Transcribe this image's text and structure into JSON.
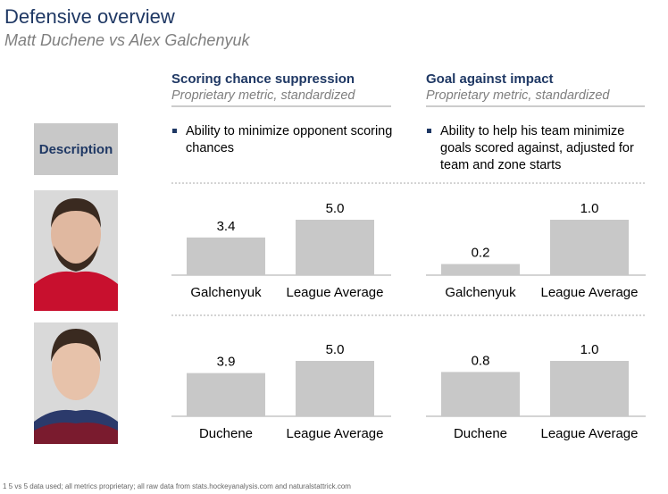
{
  "title": "Defensive overview",
  "subtitle": "Matt Duchene vs Alex Galchenyuk",
  "row_label": "Description",
  "columns": [
    {
      "title": "Scoring chance suppression",
      "subtitle": "Proprietary metric, standardized",
      "description": "Ability to minimize opponent scoring chances"
    },
    {
      "title": "Goal against impact",
      "subtitle": "Proprietary metric, standardized",
      "description": "Ability to help his team minimize goals scored against, adjusted for team and zone starts"
    }
  ],
  "chart_data": [
    {
      "type": "bar",
      "categories": [
        "Galchenyuk",
        "League Average"
      ],
      "values": [
        3.4,
        5.0
      ],
      "value_labels": [
        "3.4",
        "5.0"
      ],
      "color": "#c8c8c8"
    },
    {
      "type": "bar",
      "categories": [
        "Galchenyuk",
        "League Average"
      ],
      "values": [
        0.2,
        1.0
      ],
      "value_labels": [
        "0.2",
        "1.0"
      ],
      "color": "#c8c8c8"
    },
    {
      "type": "bar",
      "categories": [
        "Duchene",
        "League Average"
      ],
      "values": [
        3.9,
        5.0
      ],
      "value_labels": [
        "3.9",
        "5.0"
      ],
      "color": "#c8c8c8"
    },
    {
      "type": "bar",
      "categories": [
        "Duchene",
        "League Average"
      ],
      "values": [
        0.8,
        1.0
      ],
      "value_labels": [
        "0.8",
        "1.0"
      ],
      "color": "#c8c8c8"
    }
  ],
  "footnote": "1 5 vs 5 data used; all metrics proprietary; all raw data from stats.hockeyanalysis.com and naturalstattrick.com"
}
